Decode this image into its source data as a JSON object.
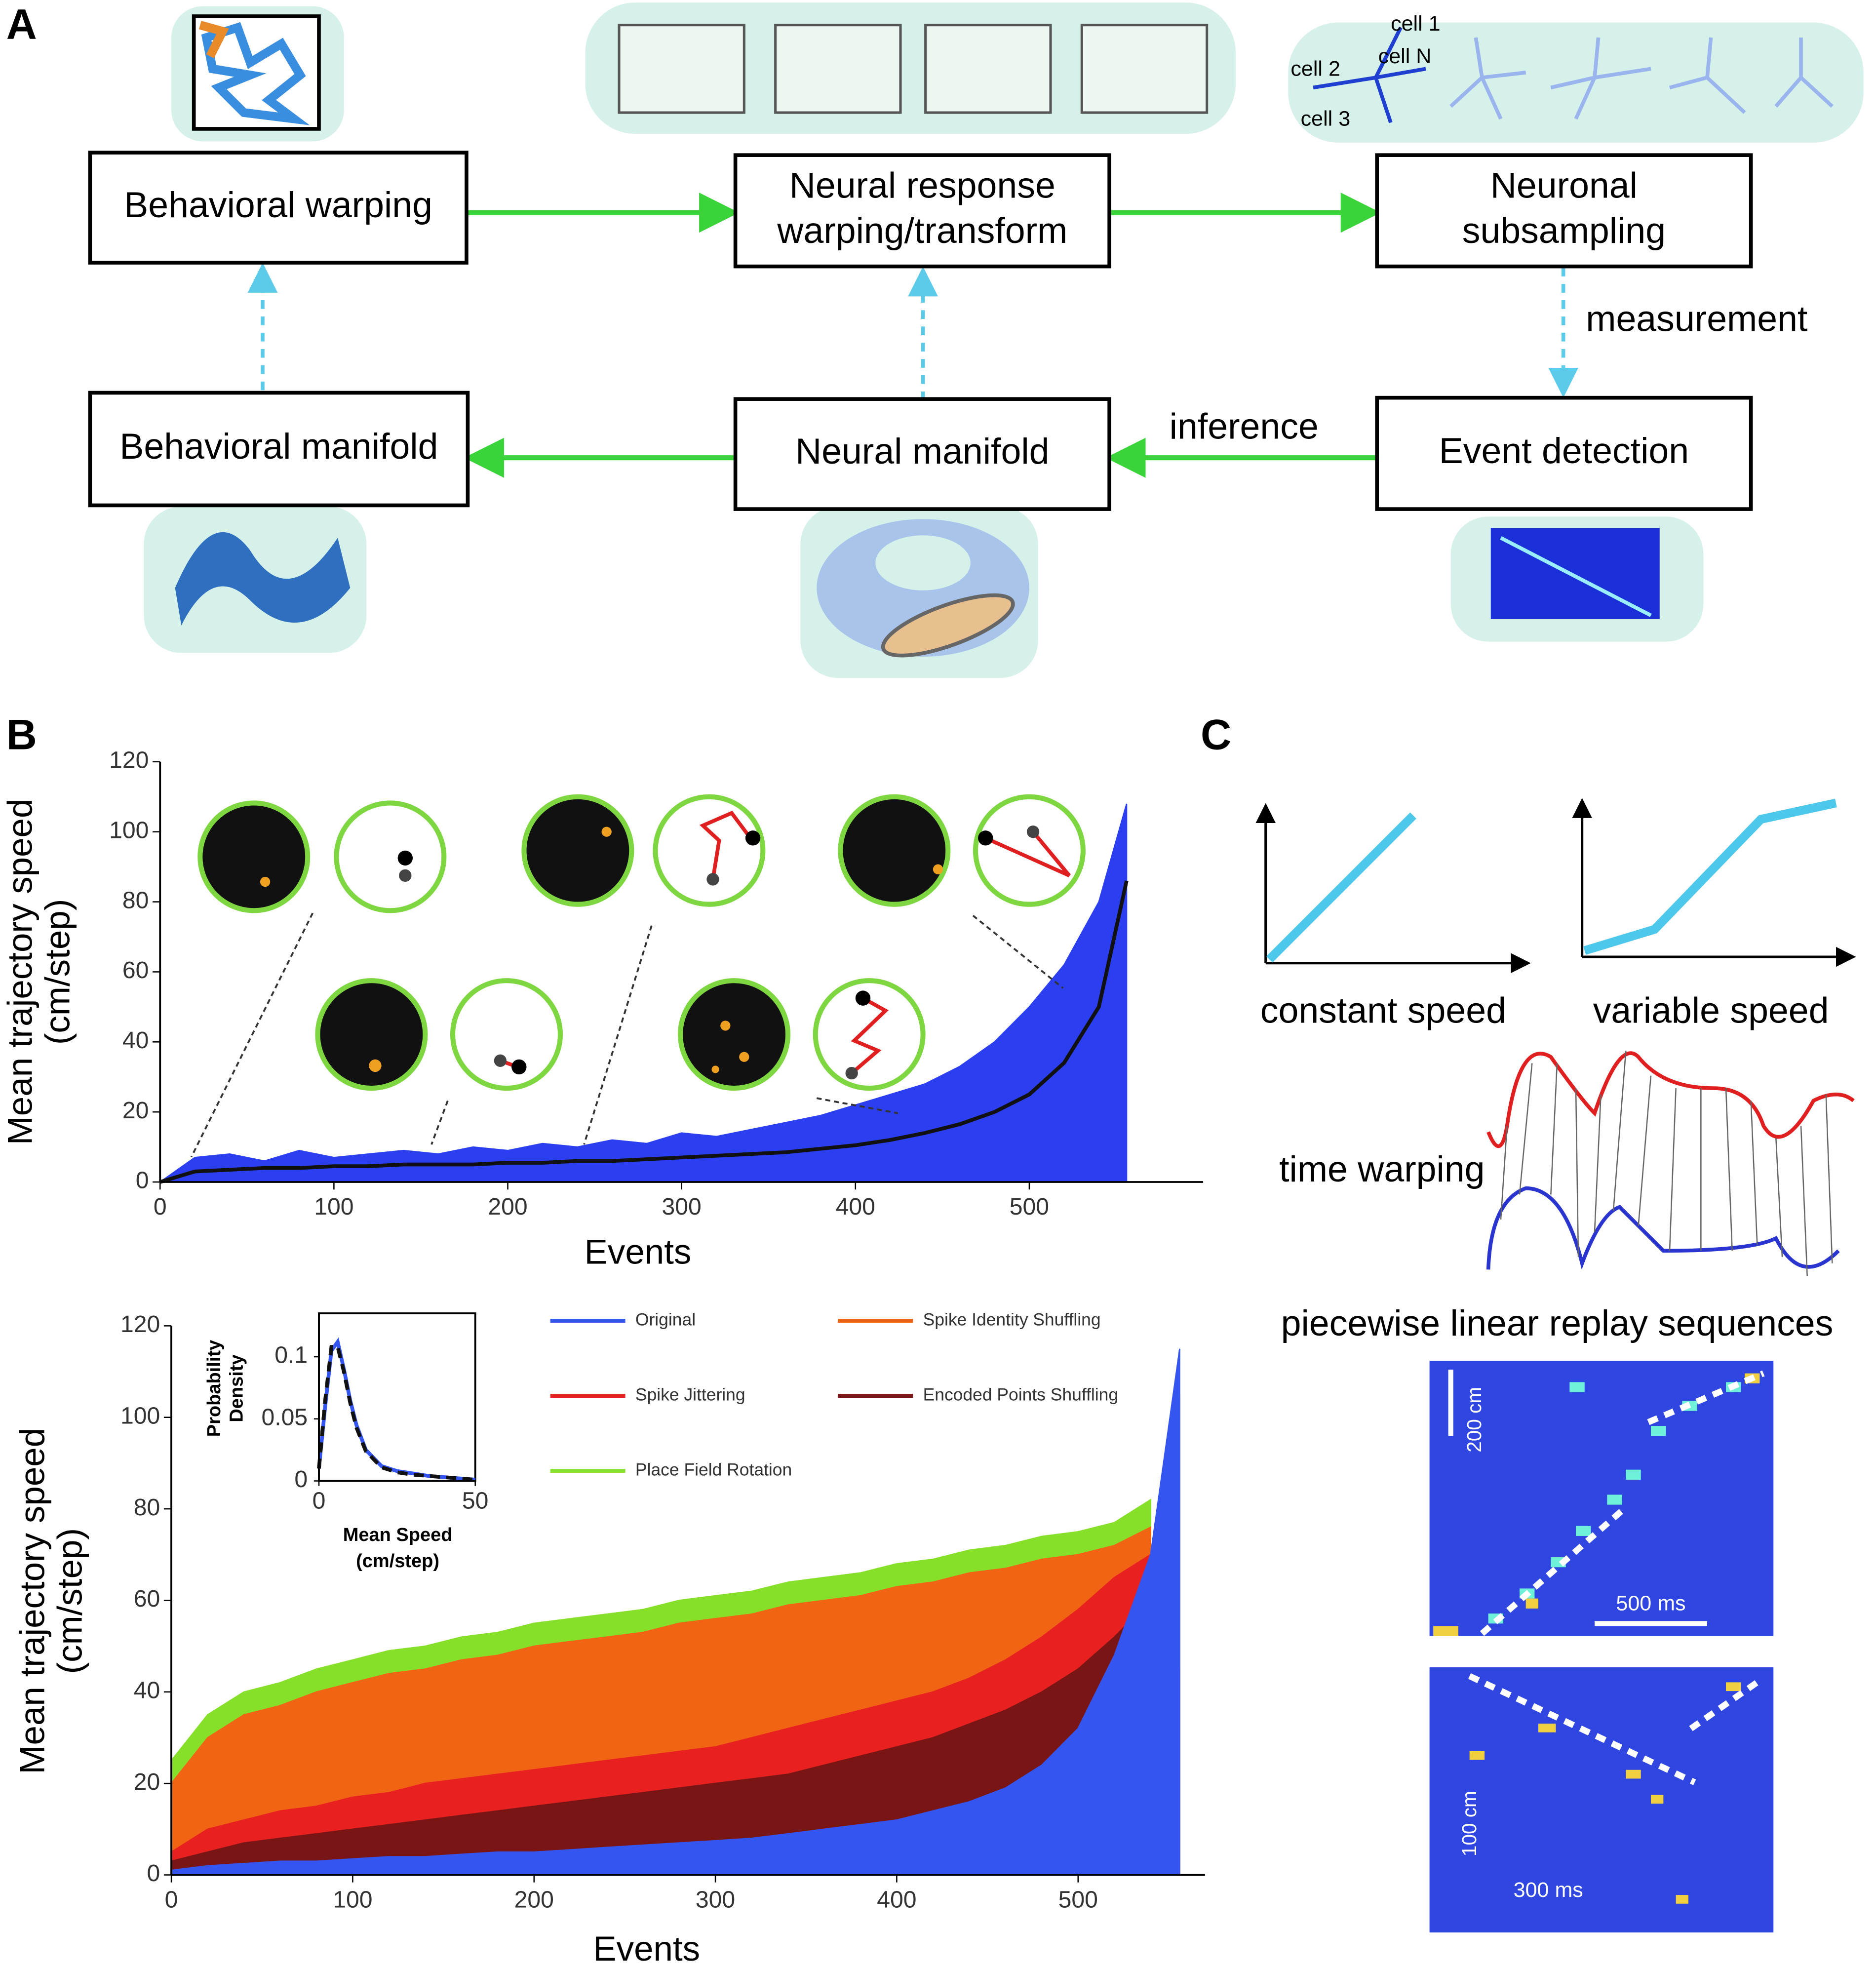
{
  "panel_labels": [
    "A",
    "B",
    "C"
  ],
  "diagram": {
    "nodes": [
      {
        "lines": [
          "Behavioral warping"
        ]
      },
      {
        "lines": [
          "Neural response",
          "warping/transform"
        ]
      },
      {
        "lines": [
          "Neuronal",
          "subsampling"
        ]
      },
      {
        "lines": [
          "Behavioral manifold"
        ]
      },
      {
        "lines": [
          "Neural manifold"
        ]
      },
      {
        "lines": [
          "Event detection"
        ]
      }
    ],
    "edge_labels": [
      "measurement",
      "inference"
    ],
    "cell_labels": [
      "cell 1",
      "cell 2",
      "cell N",
      "cell 3"
    ]
  },
  "panel_c": {
    "labels": [
      "constant speed",
      "variable speed",
      "time warping",
      "piecewise linear replay sequences"
    ],
    "scale_bars": [
      "200 cm",
      "500 ms",
      "100 cm",
      "300 ms"
    ]
  },
  "chart_data": [
    {
      "type": "line",
      "xlabel": "Events",
      "ylabel": [
        "Mean trajectory speed",
        "(cm/step)"
      ],
      "x": [
        0,
        20,
        40,
        60,
        80,
        100,
        120,
        140,
        160,
        180,
        200,
        220,
        240,
        260,
        280,
        300,
        320,
        340,
        360,
        380,
        400,
        420,
        440,
        460,
        480,
        500,
        520,
        540,
        556
      ],
      "xlim": [
        0,
        600
      ],
      "xticks": [
        0,
        100,
        200,
        300,
        400,
        500
      ],
      "ylim": [
        0,
        120
      ],
      "yticks": [
        0,
        20,
        40,
        60,
        80,
        100,
        120
      ],
      "series": [
        {
          "color": "#2b3ff0",
          "fill": true,
          "values": [
            0,
            7,
            8,
            6,
            9,
            7,
            8,
            9,
            8,
            10,
            9,
            11,
            10,
            12,
            11,
            14,
            13,
            15,
            17,
            19,
            22,
            25,
            28,
            33,
            40,
            50,
            62,
            80,
            108
          ]
        },
        {
          "color": "#111111",
          "fill": false,
          "values": [
            0,
            3,
            3.5,
            4,
            4,
            4.5,
            4.5,
            5,
            5,
            5,
            5.5,
            5.5,
            6,
            6,
            6.5,
            7,
            7.5,
            8,
            8.5,
            9.5,
            10.5,
            12,
            14,
            16.5,
            20,
            25,
            34,
            50,
            86
          ]
        }
      ]
    },
    {
      "type": "area",
      "xlabel": "Events",
      "ylabel": [
        "Mean trajectory speed",
        "(cm/step)"
      ],
      "x": [
        0,
        20,
        40,
        60,
        80,
        100,
        120,
        140,
        160,
        180,
        200,
        220,
        240,
        260,
        280,
        300,
        320,
        340,
        360,
        380,
        400,
        420,
        440,
        460,
        480,
        500,
        520,
        540,
        556
      ],
      "xlim": [
        0,
        570
      ],
      "xticks": [
        0,
        100,
        200,
        300,
        400,
        500
      ],
      "ylim": [
        0,
        120
      ],
      "yticks": [
        0,
        20,
        40,
        60,
        80,
        100,
        120
      ],
      "series": [
        {
          "name": "Original",
          "color": "#3455f0",
          "values": [
            1,
            2,
            2.5,
            3,
            3,
            3.5,
            4,
            4,
            4.5,
            5,
            5,
            5.5,
            6,
            6.5,
            7,
            7.5,
            8,
            9,
            10,
            11,
            12,
            14,
            16,
            19,
            24,
            32,
            48,
            70,
            115
          ]
        },
        {
          "name": "Spike Identity Shuffling",
          "color": "#f06414",
          "values": [
            20,
            30,
            35,
            37,
            40,
            42,
            44,
            45,
            47,
            48,
            50,
            51,
            52,
            53,
            55,
            56,
            57,
            59,
            60,
            61,
            63,
            64,
            66,
            67,
            69,
            70,
            72,
            76,
            null
          ]
        },
        {
          "name": "Spike Jittering",
          "color": "#e82020",
          "values": [
            5,
            10,
            12,
            14,
            15,
            17,
            18,
            20,
            21,
            22,
            23,
            24,
            25,
            26,
            27,
            28,
            30,
            32,
            34,
            36,
            38,
            40,
            43,
            47,
            52,
            58,
            65,
            70,
            105
          ]
        },
        {
          "name": "Encoded Points Shuffling",
          "color": "#7a1515",
          "values": [
            3,
            5,
            7,
            8,
            9,
            10,
            11,
            12,
            13,
            14,
            15,
            16,
            17,
            18,
            19,
            20,
            21,
            22,
            24,
            26,
            28,
            30,
            33,
            36,
            40,
            45,
            52,
            60,
            45
          ]
        },
        {
          "name": "Place Field Rotation",
          "color": "#86e02a",
          "values": [
            25,
            35,
            40,
            42,
            45,
            47,
            49,
            50,
            52,
            53,
            55,
            56,
            57,
            58,
            60,
            61,
            62,
            64,
            65,
            66,
            68,
            69,
            71,
            72,
            74,
            75,
            77,
            82,
            null
          ]
        }
      ]
    },
    {
      "type": "line",
      "xlabel": [
        "Mean Speed",
        "(cm/step)"
      ],
      "ylabel": [
        "Probability",
        "Density"
      ],
      "x": [
        0,
        2,
        4,
        6,
        8,
        10,
        12,
        15,
        20,
        25,
        30,
        35,
        40,
        45,
        50
      ],
      "xlim": [
        0,
        50
      ],
      "xticks": [
        0,
        50
      ],
      "ylim": [
        0,
        0.135
      ],
      "yticks": [
        0,
        0.05,
        0.1
      ],
      "series": [
        {
          "color": "#3455f0",
          "values": [
            0.01,
            0.06,
            0.105,
            0.112,
            0.09,
            0.065,
            0.045,
            0.025,
            0.012,
            0.008,
            0.006,
            0.004,
            0.003,
            0.002,
            0.001
          ]
        },
        {
          "color": "#111111",
          "dashed": true,
          "values": [
            0.01,
            0.065,
            0.108,
            0.108,
            0.088,
            0.063,
            0.043,
            0.024,
            0.011,
            0.007,
            0.005,
            0.004,
            0.003,
            0.002,
            0.001
          ]
        }
      ]
    }
  ]
}
